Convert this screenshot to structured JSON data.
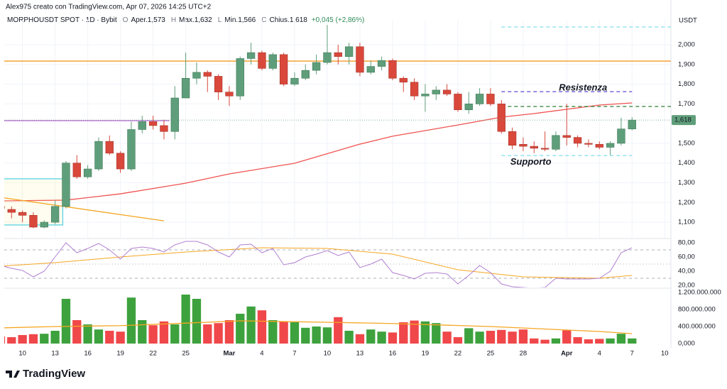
{
  "chart_data": {
    "type": "candlestick",
    "header": "Alex975 creato con TradingView.com, Apr 07, 2026 14:25 UTC+2",
    "legend": {
      "symbol": "MORPHOUSDT SPOT · 1D · Bybit",
      "o": "O",
      "o_value": "Aper.1,573",
      "h": "H",
      "h_value": "Max.1,632",
      "l": "L",
      "l_value": "Min.1,566",
      "c": "C",
      "c_value": "Chius.1,618",
      "change": "+0,045 (+2,86%)"
    },
    "y_label": "USDT",
    "logo": "TradingView",
    "up_color": "#5f9e7a",
    "down_color": "#d9483b",
    "x": [
      0,
      1,
      2,
      3,
      4,
      5,
      6,
      7,
      8,
      9,
      10,
      11,
      12,
      13,
      14,
      15,
      16,
      17,
      18,
      19,
      20,
      21,
      22,
      23,
      24,
      25,
      26,
      27,
      28,
      29,
      30,
      31,
      32,
      33,
      34,
      35,
      36,
      37,
      38,
      39,
      40,
      41,
      42,
      43,
      44,
      45,
      46,
      47,
      48,
      49,
      50,
      51,
      52,
      53,
      54,
      55,
      56,
      57,
      58
    ],
    "open": [
      1.18,
      1.165,
      1.15,
      1.135,
      1.075,
      1.1,
      1.18,
      1.4,
      1.33,
      1.37,
      1.51,
      1.45,
      1.37,
      1.57,
      1.61,
      1.59,
      1.56,
      1.73,
      1.83,
      1.86,
      1.84,
      1.76,
      1.74,
      1.93,
      1.96,
      1.88,
      1.95,
      1.8,
      1.83,
      1.87,
      1.91,
      1.96,
      1.94,
      1.99,
      1.86,
      1.89,
      1.92,
      1.83,
      1.81,
      1.74,
      1.75,
      1.77,
      1.75,
      1.67,
      1.7,
      1.75,
      1.7,
      1.56,
      1.495,
      1.485,
      1.475,
      1.47,
      1.54,
      1.53,
      1.5,
      1.495,
      1.48,
      1.5,
      1.573
    ],
    "high": [
      1.19,
      1.18,
      1.16,
      1.15,
      1.11,
      1.21,
      1.41,
      1.44,
      1.39,
      1.53,
      1.54,
      1.46,
      1.61,
      1.64,
      1.64,
      1.62,
      1.79,
      1.96,
      1.91,
      1.87,
      1.85,
      1.79,
      1.94,
      2.01,
      1.97,
      1.96,
      1.96,
      1.86,
      1.9,
      1.95,
      2.1,
      2.0,
      2.01,
      2.01,
      1.92,
      1.94,
      1.93,
      1.84,
      1.83,
      1.8,
      1.79,
      1.8,
      1.76,
      1.76,
      1.78,
      1.78,
      1.72,
      1.58,
      1.53,
      1.51,
      1.56,
      1.56,
      1.7,
      1.54,
      1.52,
      1.51,
      1.51,
      1.63,
      1.632
    ],
    "low": [
      1.16,
      1.12,
      1.1,
      1.07,
      1.07,
      1.09,
      1.17,
      1.32,
      1.32,
      1.36,
      1.44,
      1.35,
      1.36,
      1.55,
      1.57,
      1.52,
      1.52,
      1.73,
      1.8,
      1.76,
      1.72,
      1.69,
      1.72,
      1.9,
      1.87,
      1.87,
      1.79,
      1.79,
      1.82,
      1.85,
      1.9,
      1.9,
      1.9,
      1.84,
      1.85,
      1.87,
      1.82,
      1.76,
      1.72,
      1.66,
      1.72,
      1.74,
      1.66,
      1.65,
      1.69,
      1.69,
      1.55,
      1.47,
      1.46,
      1.45,
      1.46,
      1.46,
      1.49,
      1.48,
      1.48,
      1.47,
      1.44,
      1.49,
      1.566
    ],
    "close": [
      1.17,
      1.15,
      1.135,
      1.075,
      1.1,
      1.18,
      1.4,
      1.33,
      1.37,
      1.51,
      1.45,
      1.37,
      1.57,
      1.61,
      1.59,
      1.56,
      1.73,
      1.83,
      1.86,
      1.84,
      1.76,
      1.74,
      1.93,
      1.96,
      1.88,
      1.95,
      1.8,
      1.83,
      1.87,
      1.91,
      1.96,
      1.94,
      1.99,
      1.86,
      1.89,
      1.92,
      1.83,
      1.81,
      1.74,
      1.75,
      1.77,
      1.75,
      1.67,
      1.7,
      1.75,
      1.7,
      1.56,
      1.49,
      1.485,
      1.475,
      1.47,
      1.54,
      1.53,
      1.5,
      1.495,
      1.48,
      1.5,
      1.573,
      1.618
    ],
    "last_label": {
      "value": 1.618,
      "label": "1,618"
    },
    "xlim": [
      0.33,
      61.57
    ],
    "xticks": [
      {
        "value": 2,
        "label": "10"
      },
      {
        "value": 5,
        "label": "13"
      },
      {
        "value": 8,
        "label": "16"
      },
      {
        "value": 11,
        "label": "19"
      },
      {
        "value": 14,
        "label": "22"
      },
      {
        "value": 17,
        "label": "25"
      },
      {
        "value": 21,
        "label": "Mar"
      },
      {
        "value": 24,
        "label": "4"
      },
      {
        "value": 27,
        "label": "7"
      },
      {
        "value": 30,
        "label": "10"
      },
      {
        "value": 33,
        "label": "13"
      },
      {
        "value": 36,
        "label": "16"
      },
      {
        "value": 39,
        "label": "19"
      },
      {
        "value": 42,
        "label": "22"
      },
      {
        "value": 45,
        "label": "25"
      },
      {
        "value": 48,
        "label": "28"
      },
      {
        "value": 52,
        "label": "Apr"
      },
      {
        "value": 55,
        "label": "4"
      },
      {
        "value": 58,
        "label": "7"
      },
      {
        "value": 61,
        "label": "10"
      }
    ],
    "ylim": [
      1.021,
      2.126
    ],
    "yticks": [
      {
        "value": 2.0,
        "label": "2,000"
      },
      {
        "value": 1.9,
        "label": "1,900"
      },
      {
        "value": 1.8,
        "label": "1,800"
      },
      {
        "value": 1.7,
        "label": "1,700"
      },
      {
        "value": 1.5,
        "label": "1,500"
      },
      {
        "value": 1.4,
        "label": "1,400"
      },
      {
        "value": 1.3,
        "label": "1,300"
      },
      {
        "value": 1.2,
        "label": "1,200"
      },
      {
        "value": 1.1,
        "label": "1,100"
      }
    ],
    "grid": true,
    "overlays": [
      {
        "type": "line",
        "color": "#ef5350",
        "x": [
          0,
          6,
          11,
          17,
          21,
          27,
          33,
          36,
          42,
          46,
          49,
          55,
          58
        ],
        "values": [
          1.208,
          1.212,
          1.244,
          1.298,
          1.345,
          1.399,
          1.496,
          1.536,
          1.593,
          1.633,
          1.651,
          1.694,
          1.705
        ]
      },
      {
        "type": "box",
        "color": "#26c6da",
        "x": [
          -0.3,
          5.7
        ],
        "values": [
          1.086,
          1.32
        ]
      },
      {
        "type": "segment",
        "color": "#f5a623",
        "x": [
          0,
          15
        ],
        "values": [
          1.226,
          1.107
        ]
      },
      {
        "type": "hline",
        "color": "#f59a23",
        "value": 1.917
      },
      {
        "type": "hline",
        "color": "#b46ad0",
        "value": 1.615,
        "x": [
          0.33,
          15.5
        ]
      },
      {
        "type": "hline",
        "color": "#5b4bd6",
        "value": 1.762,
        "x": [
          46,
          58
        ],
        "dash": true
      },
      {
        "type": "hline",
        "color": "#2e7d32",
        "value": 1.687,
        "x": [
          46,
          61.57
        ],
        "dash": true
      },
      {
        "type": "hline",
        "color": "#80deea",
        "value": 2.09,
        "x": [
          46,
          61.57
        ],
        "dash": true
      },
      {
        "type": "hline",
        "color": "#80deea",
        "value": 1.438,
        "x": [
          46,
          58
        ],
        "dash": true
      }
    ],
    "annotations": [
      {
        "text": "Resistenza",
        "color": "#9c3bc9",
        "x": 53.5,
        "y": 1.78
      },
      {
        "text": "Supporto",
        "color": "#4dd0e1",
        "x": 48.7,
        "y": 1.405
      }
    ],
    "rsi": {
      "type": "line",
      "color": "#b080d0",
      "values": [
        48,
        44,
        41,
        32,
        40,
        60,
        80,
        66,
        72,
        79,
        70,
        57,
        72,
        74,
        72,
        67,
        77,
        82,
        82,
        77,
        67,
        60,
        77,
        78,
        66,
        72,
        49,
        52,
        60,
        64,
        69,
        62,
        67,
        45,
        50,
        57,
        38,
        34,
        29,
        37,
        38,
        36,
        22,
        34,
        48,
        38,
        22,
        18,
        17,
        16,
        17,
        30,
        29,
        29,
        29,
        30,
        40,
        66,
        73
      ],
      "ma": {
        "color": "#f5a623",
        "x": [
          0,
          5,
          11,
          17,
          24,
          30,
          36,
          42,
          48,
          55,
          58
        ],
        "values": [
          47,
          52,
          60,
          67,
          73,
          72,
          64,
          42,
          32,
          30,
          34
        ]
      },
      "levels": [
        70,
        50,
        30
      ],
      "ylim": [
        17,
        85
      ],
      "yticks": [
        {
          "value": 80,
          "label": "80,00"
        },
        {
          "value": 60,
          "label": "60,00"
        },
        {
          "value": 40,
          "label": "40,00"
        },
        {
          "value": 20,
          "label": "20,00"
        }
      ]
    },
    "volume": {
      "type": "bar",
      "up_color": "#3da23d",
      "down_color": "#f0474a",
      "values": [
        170000000,
        150000000,
        200000000,
        220000000,
        230000000,
        300000000,
        1050000000,
        550000000,
        450000000,
        330000000,
        300000000,
        280000000,
        1080000000,
        550000000,
        430000000,
        520000000,
        450000000,
        1150000000,
        1050000000,
        450000000,
        480000000,
        550000000,
        700000000,
        870000000,
        780000000,
        550000000,
        510000000,
        500000000,
        370000000,
        400000000,
        380000000,
        620000000,
        300000000,
        220000000,
        330000000,
        280000000,
        260000000,
        500000000,
        540000000,
        520000000,
        480000000,
        280000000,
        150000000,
        360000000,
        280000000,
        300000000,
        320000000,
        280000000,
        330000000,
        120000000,
        90000000,
        120000000,
        310000000,
        150000000,
        100000000,
        110000000,
        120000000,
        230000000,
        120000000
      ],
      "ma": {
        "color": "#f5a623",
        "x": [
          0,
          5,
          11,
          17,
          22,
          30,
          36,
          45,
          55,
          58
        ],
        "values": [
          367000000,
          400000000,
          420000000,
          480000000,
          533000000,
          500000000,
          470000000,
          400000000,
          283000000,
          233000000
        ]
      },
      "ylim": [
        -67000000,
        1283000000
      ],
      "yticks": [
        {
          "value": 1200000000,
          "label": "1.200.000.000"
        },
        {
          "value": 800000000,
          "label": "800.000.000"
        },
        {
          "value": 400000000,
          "label": "400.000.000"
        },
        {
          "value": 0,
          "label": "0,000"
        }
      ]
    }
  }
}
